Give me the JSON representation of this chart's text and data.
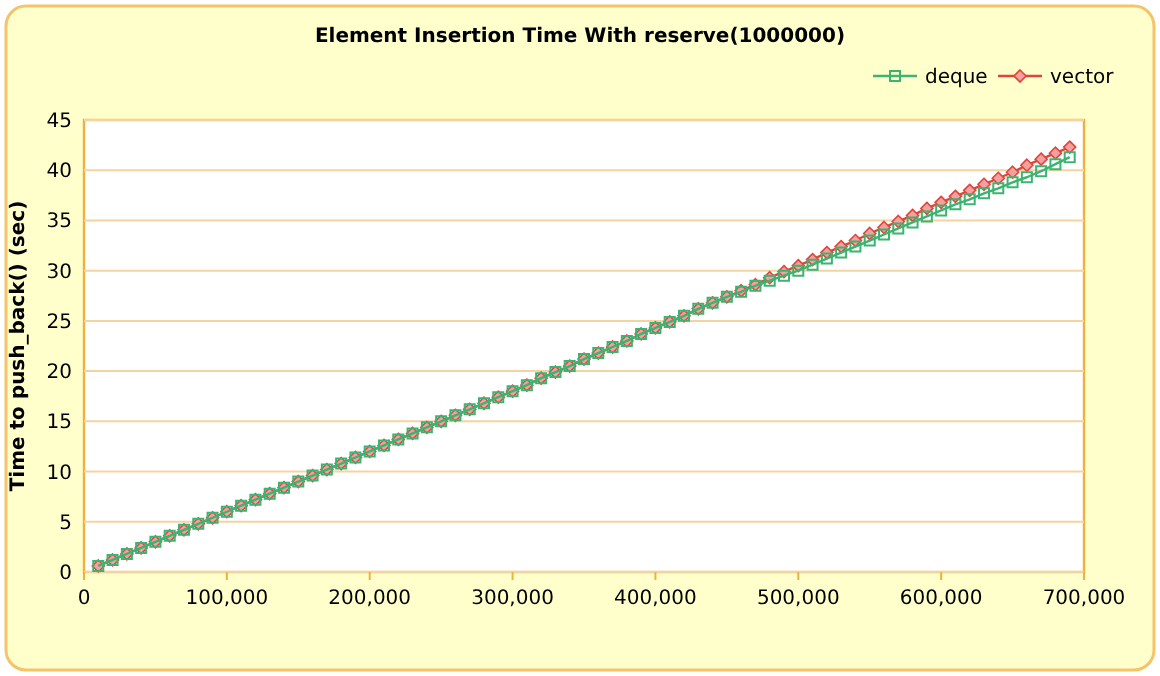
{
  "chart_data": {
    "type": "line",
    "title": "Element Insertion Time With reserve(1000000)",
    "ylabel": "Time to push_back() (sec)",
    "x": [
      10000,
      20000,
      30000,
      40000,
      50000,
      60000,
      70000,
      80000,
      90000,
      100000,
      110000,
      120000,
      130000,
      140000,
      150000,
      160000,
      170000,
      180000,
      190000,
      200000,
      210000,
      220000,
      230000,
      240000,
      250000,
      260000,
      270000,
      280000,
      290000,
      300000,
      310000,
      320000,
      330000,
      340000,
      350000,
      360000,
      370000,
      380000,
      390000,
      400000,
      410000,
      420000,
      430000,
      440000,
      450000,
      460000,
      470000,
      480000,
      490000,
      500000,
      510000,
      520000,
      530000,
      540000,
      550000,
      560000,
      570000,
      580000,
      590000,
      600000,
      610000,
      620000,
      630000,
      640000,
      650000,
      660000,
      670000,
      680000,
      690000
    ],
    "series": [
      {
        "name": "deque",
        "color": "#3cb371",
        "marker": "square",
        "values": [
          0.6,
          1.2,
          1.8,
          2.4,
          3.0,
          3.6,
          4.2,
          4.8,
          5.4,
          6.0,
          6.6,
          7.2,
          7.8,
          8.4,
          9.0,
          9.6,
          10.2,
          10.8,
          11.4,
          12.0,
          12.6,
          13.2,
          13.8,
          14.4,
          15.0,
          15.6,
          16.2,
          16.8,
          17.4,
          18.0,
          18.6,
          19.3,
          19.9,
          20.5,
          21.2,
          21.8,
          22.4,
          23.0,
          23.7,
          24.3,
          24.9,
          25.5,
          26.2,
          26.8,
          27.4,
          27.9,
          28.5,
          29.0,
          29.5,
          30.0,
          30.6,
          31.2,
          31.8,
          32.4,
          33.0,
          33.6,
          34.2,
          34.8,
          35.4,
          36.0,
          36.6,
          37.1,
          37.7,
          38.2,
          38.8,
          39.3,
          39.9,
          40.6,
          41.3
        ]
      },
      {
        "name": "vector",
        "color": "#e0453a",
        "marker": "diamond",
        "values": [
          0.6,
          1.2,
          1.8,
          2.4,
          3.0,
          3.6,
          4.2,
          4.8,
          5.4,
          6.0,
          6.6,
          7.2,
          7.8,
          8.4,
          9.0,
          9.6,
          10.2,
          10.8,
          11.4,
          12.0,
          12.6,
          13.2,
          13.8,
          14.4,
          15.0,
          15.6,
          16.2,
          16.8,
          17.4,
          18.0,
          18.6,
          19.3,
          19.9,
          20.5,
          21.2,
          21.8,
          22.4,
          23.0,
          23.7,
          24.3,
          24.9,
          25.5,
          26.2,
          26.8,
          27.4,
          28.0,
          28.6,
          29.3,
          29.9,
          30.5,
          31.1,
          31.8,
          32.4,
          33.0,
          33.7,
          34.3,
          34.9,
          35.5,
          36.2,
          36.8,
          37.4,
          38.0,
          38.6,
          39.2,
          39.8,
          40.5,
          41.1,
          41.7,
          42.3
        ]
      }
    ],
    "xlim": [
      0,
      700000
    ],
    "xticks": [
      0,
      {
        "value": 100000,
        "label": "100,000"
      },
      {
        "value": 200000,
        "label": "200,000"
      },
      {
        "value": 300000,
        "label": "300,000"
      },
      {
        "value": 400000,
        "label": "400,000"
      },
      {
        "value": 500000,
        "label": "500,000"
      },
      {
        "value": 600000,
        "label": "600,000"
      },
      {
        "value": 700000,
        "label": "700,000"
      }
    ],
    "ylim": [
      0,
      45
    ],
    "yticks": [
      0,
      5,
      10,
      15,
      20,
      25,
      30,
      35,
      40,
      45
    ],
    "grid": "y",
    "legend": "top right",
    "line_style": "solid"
  }
}
